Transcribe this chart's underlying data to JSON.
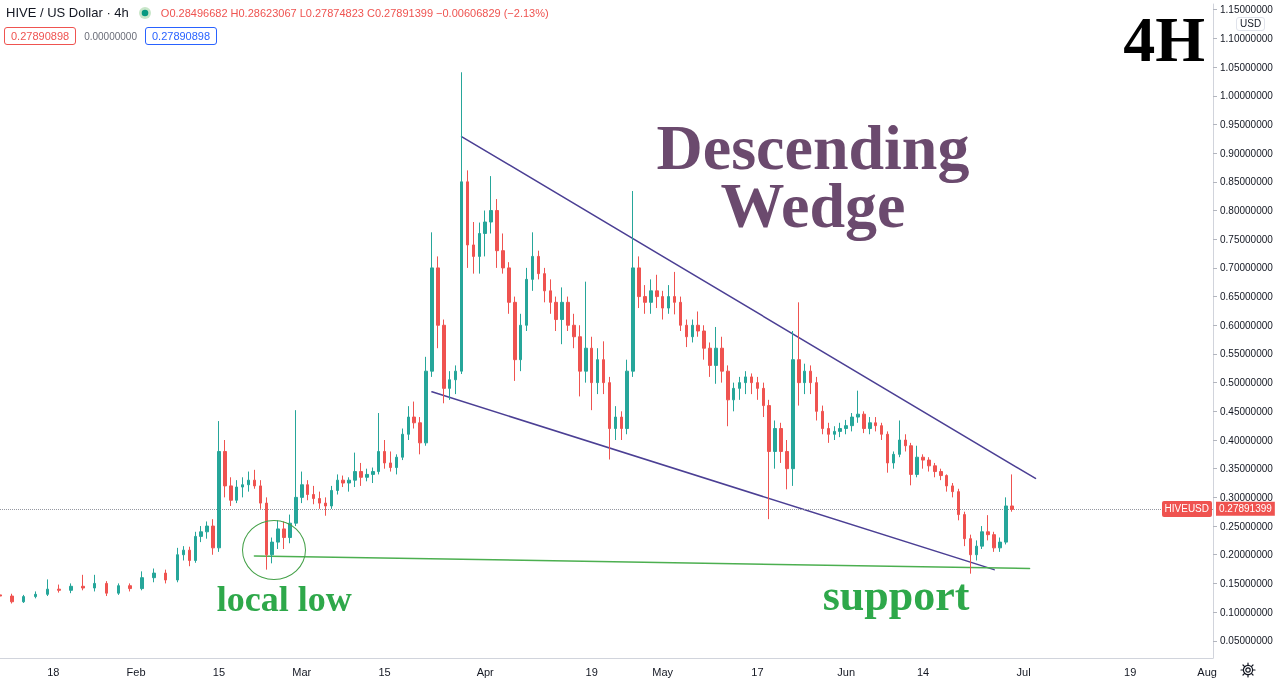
{
  "chart_data": {
    "type": "candlestick",
    "title": "HIVE / US Dollar · 4h",
    "ylabel": "USD",
    "annotations": [
      "O0.28496682 H0.28623067 L0.27874823 C0.27891399 −0.00606829 (−2.13%)",
      "0.27890898",
      "0.00000000",
      "0.27890898",
      "Descending Wedge",
      "4H",
      {
        "text": "local low",
        "x": "--02-23",
        "y": 0.174
      },
      "support",
      "HIVEUSD"
    ],
    "x": [
      "--01-09",
      "--01-11",
      "--01-13",
      "--01-15",
      "--01-17",
      "--01-19",
      "--01-21",
      "--01-23",
      "--01-25",
      "--01-27",
      "--01-29",
      "--01-31",
      "--02-02",
      "--02-04",
      "--02-06",
      "--02-08",
      "--02-09",
      "--02-10",
      "--02-11",
      "--02-12",
      "--02-13",
      "--02-14",
      "--02-15",
      "--02-16",
      "--02-17",
      "--02-18",
      "--02-19",
      "--02-20",
      "--02-21",
      "--02-22",
      "--02-23",
      "--02-24",
      "--02-25",
      "--02-26",
      "--02-27",
      "--02-28",
      "--03-01",
      "--03-02",
      "--03-03",
      "--03-04",
      "--03-05",
      "--03-06",
      "--03-07",
      "--03-08",
      "--03-09",
      "--03-10",
      "--03-11",
      "--03-12",
      "--03-13",
      "--03-14",
      "--03-15",
      "--03-16",
      "--03-17",
      "--03-18",
      "--03-19",
      "--03-20",
      "--03-21",
      "--03-22",
      "--03-23",
      "--03-24",
      "--03-25",
      "--03-26",
      "--03-27",
      "--03-28",
      "--03-29",
      "--03-30",
      "--03-31",
      "--04-01",
      "--04-02",
      "--04-03",
      "--04-04",
      "--04-05",
      "--04-06",
      "--04-07",
      "--04-08",
      "--04-09",
      "--04-10",
      "--04-11",
      "--04-12",
      "--04-13",
      "--04-14",
      "--04-15",
      "--04-16",
      "--04-17",
      "--04-18",
      "--04-19",
      "--04-20",
      "--04-21",
      "--04-22",
      "--04-23",
      "--04-24",
      "--04-25",
      "--04-26",
      "--04-27",
      "--04-28",
      "--04-29",
      "--04-30",
      "--05-01",
      "--05-02",
      "--05-03",
      "--05-04",
      "--05-05",
      "--05-06",
      "--05-07",
      "--05-08",
      "--05-09",
      "--05-10",
      "--05-11",
      "--05-12",
      "--05-13",
      "--05-14",
      "--05-15",
      "--05-16",
      "--05-17",
      "--05-18",
      "--05-19",
      "--05-20",
      "--05-21",
      "--05-22",
      "--05-23",
      "--05-24",
      "--05-25",
      "--05-26",
      "--05-27",
      "--05-28",
      "--05-29",
      "--05-30",
      "--05-31",
      "--06-01",
      "--06-02",
      "--06-03",
      "--06-04",
      "--06-05",
      "--06-06",
      "--06-07",
      "--06-08",
      "--06-09",
      "--06-10",
      "--06-11",
      "--06-12",
      "--06-13",
      "--06-14",
      "--06-15",
      "--06-16",
      "--06-17",
      "--06-18",
      "--06-19",
      "--06-20",
      "--06-21",
      "--06-22",
      "--06-23",
      "--06-24",
      "--06-25",
      "--06-26",
      "--06-27",
      "--06-28",
      "--06-29"
    ],
    "ohlc": [
      [
        0.13,
        0.138,
        0.122,
        0.128
      ],
      [
        0.128,
        0.132,
        0.115,
        0.118
      ],
      [
        0.118,
        0.13,
        0.116,
        0.127
      ],
      [
        0.127,
        0.136,
        0.124,
        0.131
      ],
      [
        0.131,
        0.157,
        0.128,
        0.14
      ],
      [
        0.14,
        0.148,
        0.134,
        0.138
      ],
      [
        0.138,
        0.15,
        0.133,
        0.145
      ],
      [
        0.145,
        0.165,
        0.138,
        0.142
      ],
      [
        0.142,
        0.165,
        0.136,
        0.15
      ],
      [
        0.15,
        0.154,
        0.128,
        0.133
      ],
      [
        0.133,
        0.15,
        0.13,
        0.146
      ],
      [
        0.146,
        0.15,
        0.136,
        0.141
      ],
      [
        0.141,
        0.171,
        0.138,
        0.16
      ],
      [
        0.16,
        0.176,
        0.152,
        0.168
      ],
      [
        0.168,
        0.174,
        0.15,
        0.156
      ],
      [
        0.156,
        0.212,
        0.152,
        0.2
      ],
      [
        0.2,
        0.215,
        0.19,
        0.208
      ],
      [
        0.208,
        0.214,
        0.18,
        0.19
      ],
      [
        0.19,
        0.24,
        0.186,
        0.232
      ],
      [
        0.232,
        0.25,
        0.222,
        0.24
      ],
      [
        0.24,
        0.258,
        0.228,
        0.25
      ],
      [
        0.25,
        0.262,
        0.2,
        0.212
      ],
      [
        0.212,
        0.433,
        0.205,
        0.38
      ],
      [
        0.38,
        0.4,
        0.3,
        0.32
      ],
      [
        0.32,
        0.335,
        0.285,
        0.295
      ],
      [
        0.295,
        0.33,
        0.29,
        0.318
      ],
      [
        0.318,
        0.335,
        0.3,
        0.322
      ],
      [
        0.322,
        0.345,
        0.31,
        0.33
      ],
      [
        0.33,
        0.348,
        0.315,
        0.32
      ],
      [
        0.32,
        0.33,
        0.28,
        0.29
      ],
      [
        0.29,
        0.3,
        0.174,
        0.2
      ],
      [
        0.2,
        0.23,
        0.185,
        0.222
      ],
      [
        0.222,
        0.26,
        0.21,
        0.245
      ],
      [
        0.245,
        0.258,
        0.21,
        0.23
      ],
      [
        0.23,
        0.27,
        0.22,
        0.255
      ],
      [
        0.255,
        0.452,
        0.25,
        0.3
      ],
      [
        0.3,
        0.345,
        0.29,
        0.322
      ],
      [
        0.322,
        0.33,
        0.295,
        0.305
      ],
      [
        0.305,
        0.32,
        0.288,
        0.298
      ],
      [
        0.298,
        0.31,
        0.28,
        0.29
      ],
      [
        0.29,
        0.3,
        0.268,
        0.285
      ],
      [
        0.285,
        0.32,
        0.28,
        0.312
      ],
      [
        0.312,
        0.34,
        0.305,
        0.33
      ],
      [
        0.33,
        0.338,
        0.318,
        0.325
      ],
      [
        0.325,
        0.335,
        0.31,
        0.33
      ],
      [
        0.33,
        0.378,
        0.318,
        0.345
      ],
      [
        0.345,
        0.36,
        0.32,
        0.335
      ],
      [
        0.335,
        0.35,
        0.328,
        0.34
      ],
      [
        0.34,
        0.352,
        0.325,
        0.345
      ],
      [
        0.345,
        0.447,
        0.34,
        0.38
      ],
      [
        0.38,
        0.4,
        0.35,
        0.36
      ],
      [
        0.36,
        0.38,
        0.345,
        0.352
      ],
      [
        0.352,
        0.375,
        0.34,
        0.37
      ],
      [
        0.37,
        0.42,
        0.365,
        0.41
      ],
      [
        0.41,
        0.459,
        0.4,
        0.44
      ],
      [
        0.44,
        0.467,
        0.42,
        0.43
      ],
      [
        0.43,
        0.44,
        0.375,
        0.395
      ],
      [
        0.395,
        0.545,
        0.39,
        0.52
      ],
      [
        0.52,
        0.762,
        0.51,
        0.7
      ],
      [
        0.7,
        0.72,
        0.56,
        0.6
      ],
      [
        0.6,
        0.61,
        0.464,
        0.49
      ],
      [
        0.49,
        0.52,
        0.47,
        0.505
      ],
      [
        0.505,
        0.53,
        0.48,
        0.52
      ],
      [
        0.52,
        1.041,
        0.515,
        0.85
      ],
      [
        0.85,
        0.87,
        0.7,
        0.74
      ],
      [
        0.74,
        0.78,
        0.69,
        0.72
      ],
      [
        0.72,
        0.779,
        0.69,
        0.76
      ],
      [
        0.76,
        0.8,
        0.72,
        0.78
      ],
      [
        0.78,
        0.86,
        0.76,
        0.8
      ],
      [
        0.8,
        0.82,
        0.7,
        0.73
      ],
      [
        0.73,
        0.76,
        0.69,
        0.7
      ],
      [
        0.7,
        0.71,
        0.62,
        0.64
      ],
      [
        0.64,
        0.65,
        0.503,
        0.54
      ],
      [
        0.54,
        0.62,
        0.52,
        0.6
      ],
      [
        0.6,
        0.7,
        0.59,
        0.68
      ],
      [
        0.68,
        0.762,
        0.66,
        0.72
      ],
      [
        0.72,
        0.73,
        0.68,
        0.69
      ],
      [
        0.69,
        0.7,
        0.64,
        0.66
      ],
      [
        0.66,
        0.68,
        0.62,
        0.64
      ],
      [
        0.64,
        0.65,
        0.59,
        0.61
      ],
      [
        0.61,
        0.666,
        0.567,
        0.64
      ],
      [
        0.64,
        0.65,
        0.59,
        0.6
      ],
      [
        0.6,
        0.62,
        0.56,
        0.58
      ],
      [
        0.58,
        0.6,
        0.476,
        0.52
      ],
      [
        0.52,
        0.676,
        0.5,
        0.56
      ],
      [
        0.56,
        0.58,
        0.452,
        0.5
      ],
      [
        0.5,
        0.56,
        0.48,
        0.54
      ],
      [
        0.54,
        0.572,
        0.48,
        0.5
      ],
      [
        0.5,
        0.51,
        0.366,
        0.42
      ],
      [
        0.42,
        0.459,
        0.4,
        0.44
      ],
      [
        0.44,
        0.45,
        0.4,
        0.42
      ],
      [
        0.42,
        0.54,
        0.41,
        0.52
      ],
      [
        0.52,
        0.834,
        0.51,
        0.7
      ],
      [
        0.7,
        0.72,
        0.63,
        0.65
      ],
      [
        0.65,
        0.67,
        0.62,
        0.64
      ],
      [
        0.64,
        0.68,
        0.62,
        0.66
      ],
      [
        0.66,
        0.688,
        0.63,
        0.65
      ],
      [
        0.65,
        0.66,
        0.61,
        0.63
      ],
      [
        0.63,
        0.67,
        0.62,
        0.65
      ],
      [
        0.65,
        0.693,
        0.619,
        0.64
      ],
      [
        0.64,
        0.65,
        0.59,
        0.6
      ],
      [
        0.6,
        0.61,
        0.562,
        0.58
      ],
      [
        0.58,
        0.61,
        0.57,
        0.6
      ],
      [
        0.6,
        0.624,
        0.58,
        0.59
      ],
      [
        0.59,
        0.6,
        0.54,
        0.56
      ],
      [
        0.56,
        0.57,
        0.51,
        0.53
      ],
      [
        0.53,
        0.597,
        0.498,
        0.56
      ],
      [
        0.56,
        0.58,
        0.5,
        0.52
      ],
      [
        0.52,
        0.53,
        0.424,
        0.47
      ],
      [
        0.47,
        0.5,
        0.45,
        0.49
      ],
      [
        0.49,
        0.51,
        0.47,
        0.5
      ],
      [
        0.5,
        0.52,
        0.48,
        0.51
      ],
      [
        0.51,
        0.516,
        0.48,
        0.5
      ],
      [
        0.5,
        0.51,
        0.47,
        0.49
      ],
      [
        0.49,
        0.5,
        0.44,
        0.46
      ],
      [
        0.46,
        0.47,
        0.262,
        0.38
      ],
      [
        0.38,
        0.434,
        0.35,
        0.42
      ],
      [
        0.42,
        0.43,
        0.36,
        0.38
      ],
      [
        0.38,
        0.4,
        0.314,
        0.35
      ],
      [
        0.35,
        0.59,
        0.32,
        0.54
      ],
      [
        0.54,
        0.64,
        0.46,
        0.5
      ],
      [
        0.5,
        0.533,
        0.48,
        0.52
      ],
      [
        0.52,
        0.53,
        0.48,
        0.5
      ],
      [
        0.5,
        0.51,
        0.434,
        0.45
      ],
      [
        0.45,
        0.46,
        0.41,
        0.42
      ],
      [
        0.42,
        0.43,
        0.395,
        0.41
      ],
      [
        0.41,
        0.424,
        0.4,
        0.415
      ],
      [
        0.415,
        0.43,
        0.405,
        0.42
      ],
      [
        0.42,
        0.435,
        0.41,
        0.425
      ],
      [
        0.425,
        0.447,
        0.415,
        0.44
      ],
      [
        0.44,
        0.486,
        0.43,
        0.445
      ],
      [
        0.445,
        0.45,
        0.412,
        0.42
      ],
      [
        0.42,
        0.44,
        0.41,
        0.43
      ],
      [
        0.43,
        0.44,
        0.415,
        0.425
      ],
      [
        0.425,
        0.43,
        0.4,
        0.41
      ],
      [
        0.41,
        0.415,
        0.343,
        0.36
      ],
      [
        0.36,
        0.38,
        0.35,
        0.375
      ],
      [
        0.375,
        0.434,
        0.37,
        0.4
      ],
      [
        0.4,
        0.41,
        0.38,
        0.39
      ],
      [
        0.39,
        0.395,
        0.321,
        0.34
      ],
      [
        0.34,
        0.39,
        0.335,
        0.37
      ],
      [
        0.37,
        0.375,
        0.35,
        0.365
      ],
      [
        0.365,
        0.37,
        0.345,
        0.355
      ],
      [
        0.355,
        0.36,
        0.335,
        0.345
      ],
      [
        0.345,
        0.35,
        0.33,
        0.338
      ],
      [
        0.338,
        0.34,
        0.31,
        0.32
      ],
      [
        0.32,
        0.325,
        0.3,
        0.31
      ],
      [
        0.31,
        0.315,
        0.26,
        0.27
      ],
      [
        0.27,
        0.275,
        0.215,
        0.228
      ],
      [
        0.228,
        0.235,
        0.167,
        0.2
      ],
      [
        0.2,
        0.225,
        0.19,
        0.215
      ],
      [
        0.215,
        0.25,
        0.21,
        0.24
      ],
      [
        0.24,
        0.269,
        0.225,
        0.235
      ],
      [
        0.235,
        0.24,
        0.205,
        0.212
      ],
      [
        0.212,
        0.23,
        0.205,
        0.222
      ],
      [
        0.222,
        0.3,
        0.218,
        0.285
      ],
      [
        0.285,
        0.34,
        0.275,
        0.279
      ]
    ],
    "series": [
      {
        "type": "line",
        "color": "#4b3f94",
        "x": [
          "--03-28",
          "--07-03"
        ],
        "values": [
          0.929,
          0.333
        ]
      },
      {
        "type": "line",
        "color": "#4b3f94",
        "x": [
          "--03-23",
          "--06-26"
        ],
        "values": [
          0.484,
          0.174
        ]
      },
      {
        "type": "line",
        "color": "#4caf50",
        "x": [
          "--02-21",
          "--07-02"
        ],
        "values": [
          0.198,
          0.176
        ]
      }
    ],
    "xlim": [
      "--01-09",
      "--08-02"
    ],
    "xticks": [
      {
        "value": "--01-18",
        "label": "18"
      },
      {
        "value": "--02-01",
        "label": "Feb"
      },
      {
        "value": "--02-15",
        "label": "15"
      },
      {
        "value": "--03-01",
        "label": "Mar"
      },
      {
        "value": "--03-15",
        "label": "15"
      },
      {
        "value": "--04-01",
        "label": "Apr"
      },
      {
        "value": "--04-19",
        "label": "19"
      },
      {
        "value": "--05-01",
        "label": "May"
      },
      {
        "value": "--05-17",
        "label": "17"
      },
      {
        "value": "--06-01",
        "label": "Jun"
      },
      {
        "value": "--06-14",
        "label": "14"
      },
      {
        "value": "--07-01",
        "label": "Jul"
      },
      {
        "value": "--07-19",
        "label": "19"
      },
      {
        "value": "--08-01",
        "label": "Aug"
      }
    ],
    "ylim": [
      0.02,
      1.16
    ],
    "yticks": [
      {
        "value": 0.05,
        "label": "0.05000000"
      },
      {
        "value": 0.1,
        "label": "0.10000000"
      },
      {
        "value": 0.15,
        "label": "0.15000000"
      },
      {
        "value": 0.2,
        "label": "0.20000000"
      },
      {
        "value": 0.25,
        "label": "0.25000000"
      },
      {
        "value": 0.3,
        "label": "0.30000000"
      },
      {
        "value": 0.35,
        "label": "0.35000000"
      },
      {
        "value": 0.4,
        "label": "0.40000000"
      },
      {
        "value": 0.45,
        "label": "0.45000000"
      },
      {
        "value": 0.5,
        "label": "0.50000000"
      },
      {
        "value": 0.55,
        "label": "0.55000000"
      },
      {
        "value": 0.6,
        "label": "0.60000000"
      },
      {
        "value": 0.65,
        "label": "0.65000000"
      },
      {
        "value": 0.7,
        "label": "0.70000000"
      },
      {
        "value": 0.75,
        "label": "0.75000000"
      },
      {
        "value": 0.8,
        "label": "0.80000000"
      },
      {
        "value": 0.85,
        "label": "0.85000000"
      },
      {
        "value": 0.9,
        "label": "0.90000000"
      },
      {
        "value": 0.95,
        "label": "0.95000000"
      },
      {
        "value": 1,
        "label": "1.00000000"
      },
      {
        "value": 1.05,
        "label": "1.05000000"
      },
      {
        "value": 1.1,
        "label": "1.10000000"
      },
      {
        "value": 1.15,
        "label": "1.15000000"
      }
    ],
    "ref_lines": [
      {
        "axis": "y",
        "value": 0.27891399,
        "label": "0.27891399",
        "color": "#9598a1",
        "line_style": "dotted"
      }
    ]
  }
}
